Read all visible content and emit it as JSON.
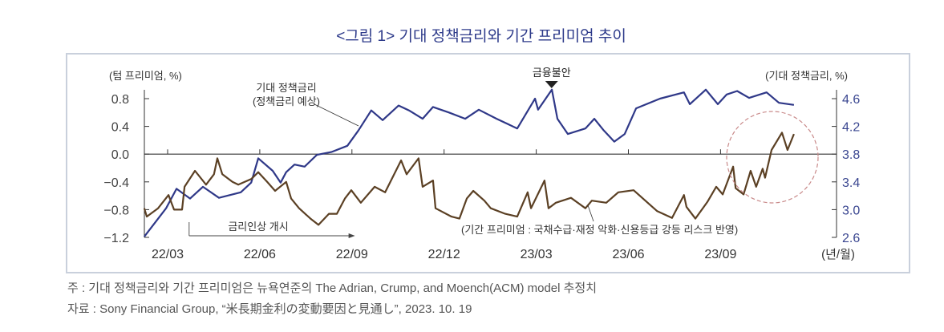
{
  "title": "<그림 1> 기대 정책금리와 기간 프리미엄 추이",
  "notes": {
    "note": "주 : 기대 정책금리와 기간 프리미엄은 뉴욕연준의 The Adrian, Crump, and Moench(ACM) model 추정치",
    "source": "자료 : Sony Financial Group, “米長期金利の変動要因と見通し”, 2023. 10. 19"
  },
  "colors": {
    "expected_rate": "#2f3888",
    "term_premium": "#5b4024",
    "circle": "#c98a8a",
    "axis": "#333333",
    "text": "#444444"
  },
  "chart_data": {
    "type": "line",
    "title": "<그림 1> 기대 정책금리와 기간 프리미엄 추이",
    "xlabel": "(년/월)",
    "ylabel_left": "(텀 프리미엄, %)",
    "ylabel_right": "(기대 정책금리, %)",
    "x_unit": "months since 2021/12",
    "xlim": [
      1.24,
      23.78
    ],
    "ylim_left": [
      -1.2,
      0.8
    ],
    "ylim_right": [
      2.6,
      4.6
    ],
    "x_ticks": [
      {
        "m": 2,
        "label": "22/03"
      },
      {
        "m": 5,
        "label": "22/06"
      },
      {
        "m": 8,
        "label": "22/09"
      },
      {
        "m": 11,
        "label": "22/12"
      },
      {
        "m": 14,
        "label": "23/03"
      },
      {
        "m": 17,
        "label": "23/06"
      },
      {
        "m": 20,
        "label": "23/09"
      }
    ],
    "y_ticks_left": [
      "0.8",
      "0.4",
      "0.0",
      "−0.4",
      "−0.8",
      "−1.2"
    ],
    "y_ticks_left_values": [
      0.8,
      0.4,
      0.0,
      -0.4,
      -0.8,
      -1.2
    ],
    "y_ticks_right": [
      "4.6",
      "4.2",
      "3.8",
      "3.4",
      "3.0",
      "2.6"
    ],
    "y_ticks_right_values": [
      4.6,
      4.2,
      3.8,
      3.4,
      3.0,
      2.6
    ],
    "series": [
      {
        "name": "기대 정책금리",
        "axis": "right",
        "x": [
          1.24,
          1.95,
          2.29,
          2.73,
          3.15,
          3.67,
          4.38,
          4.72,
          4.95,
          5.42,
          5.68,
          5.86,
          6.13,
          6.46,
          6.86,
          7.33,
          7.85,
          8.21,
          8.63,
          9.0,
          9.52,
          9.86,
          10.3,
          10.64,
          11.16,
          11.69,
          12.13,
          12.71,
          13.38,
          13.96,
          14.06,
          14.51,
          14.69,
          15.03,
          15.6,
          15.89,
          16.2,
          16.54,
          16.88,
          17.25,
          18.03,
          18.81,
          19.0,
          19.52,
          19.91,
          20.2,
          20.54,
          20.93,
          21.5,
          21.9,
          22.39
        ],
        "values": [
          2.61,
          3.02,
          3.3,
          3.16,
          3.33,
          3.17,
          3.25,
          3.39,
          3.74,
          3.56,
          3.39,
          3.54,
          3.65,
          3.62,
          3.79,
          3.83,
          3.92,
          4.14,
          4.43,
          4.29,
          4.5,
          4.43,
          4.31,
          4.48,
          4.4,
          4.31,
          4.44,
          4.31,
          4.17,
          4.6,
          4.44,
          4.73,
          4.31,
          4.09,
          4.17,
          4.31,
          4.14,
          3.98,
          4.09,
          4.46,
          4.6,
          4.69,
          4.52,
          4.73,
          4.52,
          4.66,
          4.71,
          4.61,
          4.69,
          4.54,
          4.51
        ]
      },
      {
        "name": "기간 프리미엄",
        "axis": "left",
        "x": [
          1.24,
          1.32,
          1.69,
          2.03,
          2.21,
          2.47,
          2.55,
          2.89,
          3.25,
          3.51,
          3.62,
          3.78,
          4.11,
          4.3,
          4.72,
          4.95,
          5.24,
          5.5,
          5.86,
          6.02,
          6.28,
          6.65,
          6.91,
          7.25,
          7.51,
          7.77,
          7.98,
          8.29,
          8.74,
          9.08,
          9.6,
          9.78,
          10.17,
          10.3,
          10.64,
          10.72,
          11.24,
          11.5,
          11.74,
          11.95,
          12.31,
          12.52,
          12.99,
          13.38,
          13.72,
          13.83,
          14.27,
          14.4,
          14.64,
          15.13,
          15.6,
          15.81,
          16.28,
          16.67,
          17.17,
          17.93,
          18.42,
          18.81,
          18.89,
          19.18,
          19.57,
          19.86,
          20.07,
          20.41,
          20.49,
          20.75,
          20.98,
          21.16,
          21.37,
          21.45,
          21.66,
          22.0,
          22.18,
          22.39
        ],
        "values": [
          -0.78,
          -0.9,
          -0.78,
          -0.59,
          -0.8,
          -0.8,
          -0.47,
          -0.24,
          -0.44,
          -0.29,
          -0.06,
          -0.29,
          -0.4,
          -0.44,
          -0.36,
          -0.26,
          -0.4,
          -0.53,
          -0.4,
          -0.64,
          -0.78,
          -0.93,
          -1.02,
          -0.86,
          -0.86,
          -0.64,
          -0.52,
          -0.7,
          -0.47,
          -0.55,
          -0.09,
          -0.29,
          -0.06,
          -0.47,
          -0.38,
          -0.78,
          -0.9,
          -0.93,
          -0.64,
          -0.53,
          -0.67,
          -0.78,
          -0.86,
          -0.9,
          -0.55,
          -0.78,
          -0.38,
          -0.78,
          -0.7,
          -0.63,
          -0.78,
          -0.67,
          -0.7,
          -0.55,
          -0.52,
          -0.82,
          -0.92,
          -0.59,
          -0.76,
          -0.93,
          -0.69,
          -0.47,
          -0.58,
          -0.18,
          -0.49,
          -0.58,
          -0.24,
          -0.47,
          -0.21,
          -0.34,
          0.06,
          0.31,
          0.06,
          0.29
        ]
      }
    ],
    "annotations": {
      "expected_rate_label_1": "기대 정책금리",
      "expected_rate_label_2": "(정책금리 예상)",
      "financial_unrest": "금융불안",
      "financial_unrest_m": 14.5,
      "rate_hike": "금리인상 개시",
      "rate_hike_start_m": 2.7,
      "rate_hike_end_m": 8.1,
      "term_premium_label": "(기간 프리미엄 : 국채수급·재정 악화·신용등급 강등 리스크 반영)"
    },
    "grid": false
  }
}
